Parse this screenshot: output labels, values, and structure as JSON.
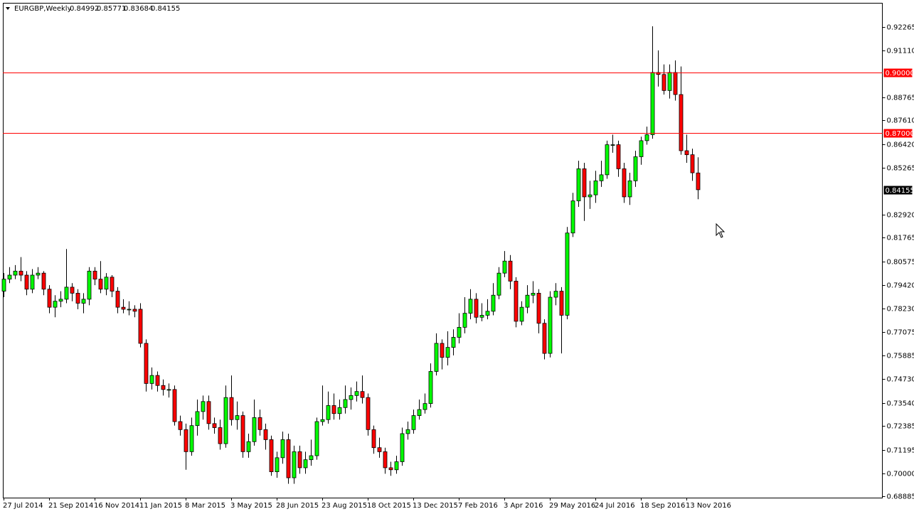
{
  "chart_data": {
    "type": "candlestick",
    "title": "EURGBP,Weekly",
    "up_color": "#00ff00",
    "down_color": "#ff0000",
    "wick_color": "#000000",
    "level_color": "#ff0000",
    "ylim": [
      0.6881,
      0.9347
    ],
    "yticks": [
      0.92265,
      {
        "value": 0.9111,
        "label": "0.91110"
      },
      0.88765,
      {
        "value": 0.8761,
        "label": "0.87610"
      },
      {
        "value": 0.8642,
        "label": "0.86420"
      },
      0.85265,
      {
        "value": 0.8292,
        "label": "0.82920"
      },
      0.81765,
      0.80575,
      {
        "value": 0.7942,
        "label": "0.79420"
      },
      {
        "value": 0.7823,
        "label": "0.78230"
      },
      0.77075,
      0.75885,
      {
        "value": 0.7473,
        "label": "0.74730"
      },
      {
        "value": 0.7354,
        "label": "0.73540"
      },
      0.72385,
      0.71195,
      {
        "value": 0.7,
        "label": "0.70000"
      },
      0.68885
    ],
    "levels": [
      {
        "value": 0.9,
        "label": "0.90000"
      },
      {
        "value": 0.87,
        "label": "0.87000"
      }
    ],
    "categories": [
      "27 Jul 2014",
      null,
      null,
      null,
      null,
      null,
      null,
      null,
      "21 Sep 2014",
      null,
      null,
      null,
      null,
      null,
      null,
      null,
      "16 Nov 2014",
      null,
      null,
      null,
      null,
      null,
      null,
      null,
      "11 Jan 2015",
      null,
      null,
      null,
      null,
      null,
      null,
      null,
      "8 Mar 2015",
      null,
      null,
      null,
      null,
      null,
      null,
      null,
      "3 May 2015",
      null,
      null,
      null,
      null,
      null,
      null,
      null,
      "28 Jun 2015",
      null,
      null,
      null,
      null,
      null,
      null,
      null,
      "23 Aug 2015",
      null,
      null,
      null,
      null,
      null,
      null,
      null,
      "18 Oct 2015",
      null,
      null,
      null,
      null,
      null,
      null,
      null,
      "13 Dec 2015",
      null,
      null,
      null,
      null,
      null,
      null,
      null,
      "7 Feb 2016",
      null,
      null,
      null,
      null,
      null,
      null,
      null,
      "3 Apr 2016",
      null,
      null,
      null,
      null,
      null,
      null,
      null,
      "29 May 2016",
      null,
      null,
      null,
      null,
      null,
      null,
      null,
      "24 Jul 2016",
      null,
      null,
      null,
      null,
      null,
      null,
      null,
      "18 Sep 2016",
      null,
      null,
      null,
      null,
      null,
      null,
      null,
      "13 Nov 2016",
      null,
      null
    ],
    "open": [
      0.791,
      0.797,
      0.799,
      0.801,
      0.799,
      0.792,
      0.799,
      0.8,
      0.792,
      0.783,
      0.786,
      0.787,
      0.793,
      0.79,
      0.785,
      0.787,
      0.801,
      0.797,
      0.792,
      0.798,
      0.791,
      0.783,
      0.782,
      0.782,
      0.782,
      0.765,
      0.745,
      0.749,
      0.744,
      0.742,
      0.742,
      0.726,
      0.722,
      0.711,
      0.724,
      0.731,
      0.736,
      0.725,
      0.723,
      0.715,
      0.738,
      0.727,
      0.729,
      0.711,
      0.716,
      0.728,
      0.722,
      0.717,
      0.701,
      0.708,
      0.717,
      0.698,
      0.711,
      0.703,
      0.707,
      0.709,
      0.726,
      0.727,
      0.734,
      0.73,
      0.733,
      0.737,
      0.739,
      0.741,
      0.738,
      0.722,
      0.713,
      0.711,
      0.703,
      0.702,
      0.706,
      0.72,
      0.722,
      0.729,
      0.732,
      0.735,
      0.751,
      0.765,
      0.758,
      0.763,
      0.768,
      0.773,
      0.78,
      0.787,
      0.778,
      0.779,
      0.781,
      0.789,
      0.8,
      0.806,
      0.796,
      0.776,
      0.783,
      0.789,
      0.79,
      0.775,
      0.76,
      0.788,
      0.791,
      0.779,
      0.82,
      0.836,
      0.852,
      0.838,
      0.839,
      0.846,
      0.849,
      0.864,
      0.864,
      0.852,
      0.838,
      0.846,
      0.858,
      0.866,
      0.869,
      0.9,
      0.899,
      0.891,
      0.9,
      0.889,
      0.861,
      0.859,
      0.84992
    ],
    "high": [
      0.8,
      0.803,
      0.804,
      0.808,
      0.801,
      0.802,
      0.803,
      0.801,
      0.794,
      0.789,
      0.791,
      0.812,
      0.795,
      0.792,
      0.79,
      0.803,
      0.803,
      0.806,
      0.8,
      0.799,
      0.793,
      0.787,
      0.786,
      0.784,
      0.785,
      0.767,
      0.753,
      0.751,
      0.747,
      0.745,
      0.744,
      0.729,
      0.725,
      0.728,
      0.737,
      0.739,
      0.739,
      0.728,
      0.727,
      0.744,
      0.749,
      0.736,
      0.731,
      0.72,
      0.737,
      0.732,
      0.725,
      0.719,
      0.711,
      0.721,
      0.72,
      0.714,
      0.714,
      0.711,
      0.717,
      0.728,
      0.744,
      0.741,
      0.74,
      0.737,
      0.744,
      0.743,
      0.746,
      0.749,
      0.74,
      0.724,
      0.718,
      0.713,
      0.706,
      0.709,
      0.723,
      0.726,
      0.732,
      0.737,
      0.74,
      0.755,
      0.77,
      0.767,
      0.771,
      0.772,
      0.78,
      0.788,
      0.792,
      0.79,
      0.785,
      0.787,
      0.795,
      0.803,
      0.811,
      0.809,
      0.798,
      0.786,
      0.794,
      0.796,
      0.792,
      0.777,
      0.791,
      0.795,
      0.793,
      0.823,
      0.84,
      0.856,
      0.855,
      0.846,
      0.851,
      0.856,
      0.866,
      0.869,
      0.866,
      0.855,
      0.85,
      0.861,
      0.868,
      0.873,
      0.923,
      0.911,
      0.904,
      0.904,
      0.906,
      0.903,
      0.869,
      0.862,
      0.85771
    ],
    "low": [
      0.788,
      0.795,
      0.797,
      0.796,
      0.789,
      0.79,
      0.797,
      0.789,
      0.78,
      0.778,
      0.783,
      0.785,
      0.786,
      0.782,
      0.78,
      0.784,
      0.794,
      0.79,
      0.789,
      0.788,
      0.78,
      0.78,
      0.779,
      0.778,
      0.763,
      0.741,
      0.742,
      0.741,
      0.739,
      0.738,
      0.724,
      0.719,
      0.702,
      0.709,
      0.719,
      0.727,
      0.722,
      0.72,
      0.712,
      0.713,
      0.724,
      0.722,
      0.708,
      0.708,
      0.714,
      0.719,
      0.712,
      0.699,
      0.698,
      0.705,
      0.695,
      0.695,
      0.7,
      0.7,
      0.704,
      0.707,
      0.724,
      0.725,
      0.727,
      0.727,
      0.73,
      0.732,
      0.736,
      0.735,
      0.719,
      0.71,
      0.708,
      0.7,
      0.699,
      0.7,
      0.704,
      0.717,
      0.72,
      0.727,
      0.73,
      0.733,
      0.749,
      0.752,
      0.754,
      0.759,
      0.765,
      0.77,
      0.777,
      0.775,
      0.776,
      0.777,
      0.779,
      0.787,
      0.798,
      0.792,
      0.773,
      0.774,
      0.78,
      0.785,
      0.77,
      0.757,
      0.758,
      0.784,
      0.76,
      0.777,
      0.818,
      0.833,
      0.826,
      0.832,
      0.835,
      0.843,
      0.847,
      0.86,
      0.848,
      0.835,
      0.834,
      0.843,
      0.854,
      0.864,
      0.867,
      0.893,
      0.889,
      0.887,
      0.886,
      0.859,
      0.855,
      0.846,
      0.83684
    ],
    "close": [
      0.797,
      0.799,
      0.801,
      0.799,
      0.792,
      0.799,
      0.8,
      0.792,
      0.783,
      0.786,
      0.787,
      0.793,
      0.79,
      0.785,
      0.787,
      0.801,
      0.797,
      0.792,
      0.798,
      0.791,
      0.783,
      0.782,
      0.782,
      0.781,
      0.765,
      0.745,
      0.749,
      0.744,
      0.742,
      0.742,
      0.726,
      0.722,
      0.711,
      0.724,
      0.731,
      0.736,
      0.725,
      0.723,
      0.715,
      0.738,
      0.727,
      0.729,
      0.711,
      0.716,
      0.728,
      0.722,
      0.717,
      0.701,
      0.708,
      0.717,
      0.698,
      0.711,
      0.703,
      0.707,
      0.709,
      0.726,
      0.727,
      0.734,
      0.73,
      0.733,
      0.737,
      0.739,
      0.741,
      0.738,
      0.722,
      0.713,
      0.711,
      0.703,
      0.702,
      0.706,
      0.72,
      0.722,
      0.729,
      0.732,
      0.735,
      0.751,
      0.765,
      0.758,
      0.763,
      0.768,
      0.773,
      0.78,
      0.787,
      0.778,
      0.779,
      0.781,
      0.789,
      0.8,
      0.806,
      0.796,
      0.776,
      0.783,
      0.789,
      0.79,
      0.775,
      0.76,
      0.788,
      0.791,
      0.779,
      0.82,
      0.836,
      0.852,
      0.838,
      0.839,
      0.846,
      0.849,
      0.864,
      0.864,
      0.852,
      0.838,
      0.846,
      0.858,
      0.866,
      0.869,
      0.9,
      0.899,
      0.891,
      0.9,
      0.889,
      0.861,
      0.859,
      0.85,
      0.84155
    ]
  }
}
